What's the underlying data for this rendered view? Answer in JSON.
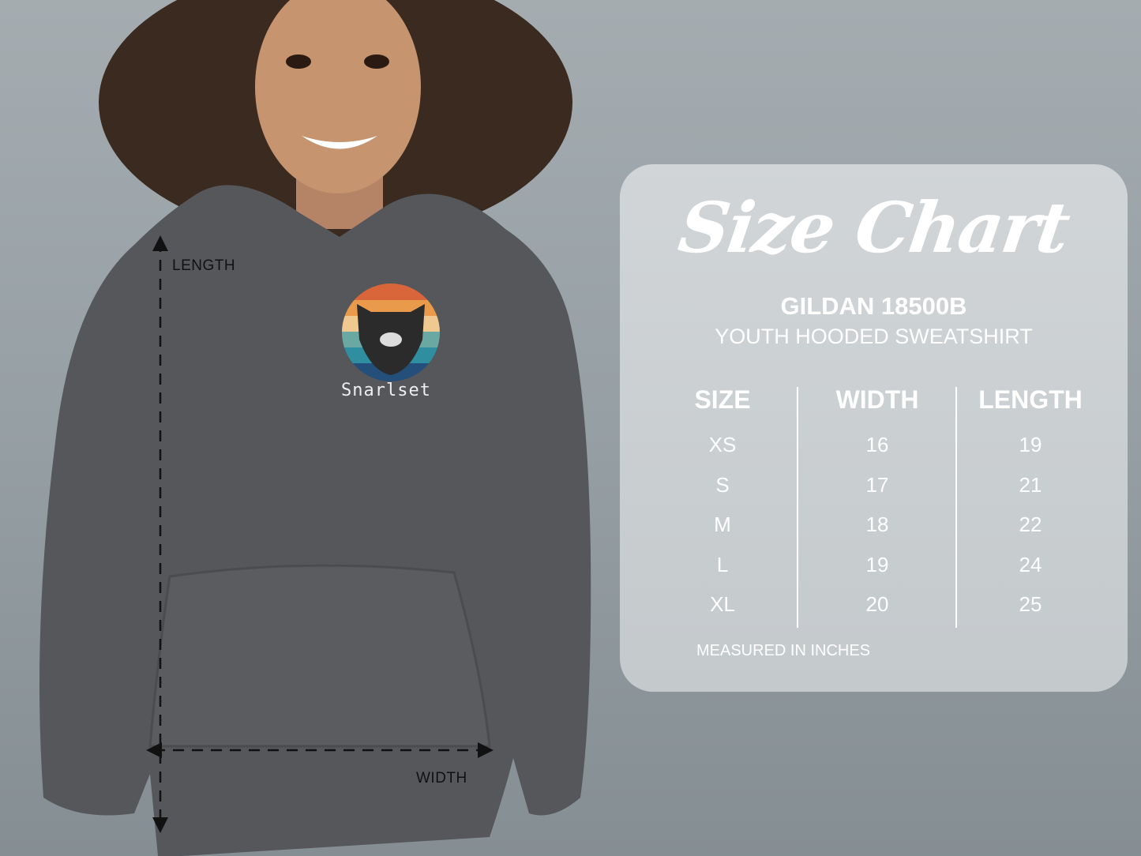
{
  "photo": {
    "length_label": "LENGTH",
    "width_label": "WIDTH",
    "print_text": "Snarlset",
    "print_stripe_colors": [
      "#d9663a",
      "#e99a4a",
      "#efc98f",
      "#6aa8a4",
      "#2f8ea0",
      "#234f7a"
    ],
    "hoodie_color": "#55575b"
  },
  "size_chart": {
    "title": "Size Chart",
    "brand": "GILDAN 18500B",
    "product": "YOUTH HOODED SWEATSHIRT",
    "columns": [
      "SIZE",
      "WIDTH",
      "LENGTH"
    ],
    "rows": [
      [
        "XS",
        "16",
        "19"
      ],
      [
        "S",
        "17",
        "21"
      ],
      [
        "M",
        "18",
        "22"
      ],
      [
        "L",
        "19",
        "24"
      ],
      [
        "XL",
        "20",
        "25"
      ]
    ],
    "note": "MEASURED IN INCHES"
  }
}
